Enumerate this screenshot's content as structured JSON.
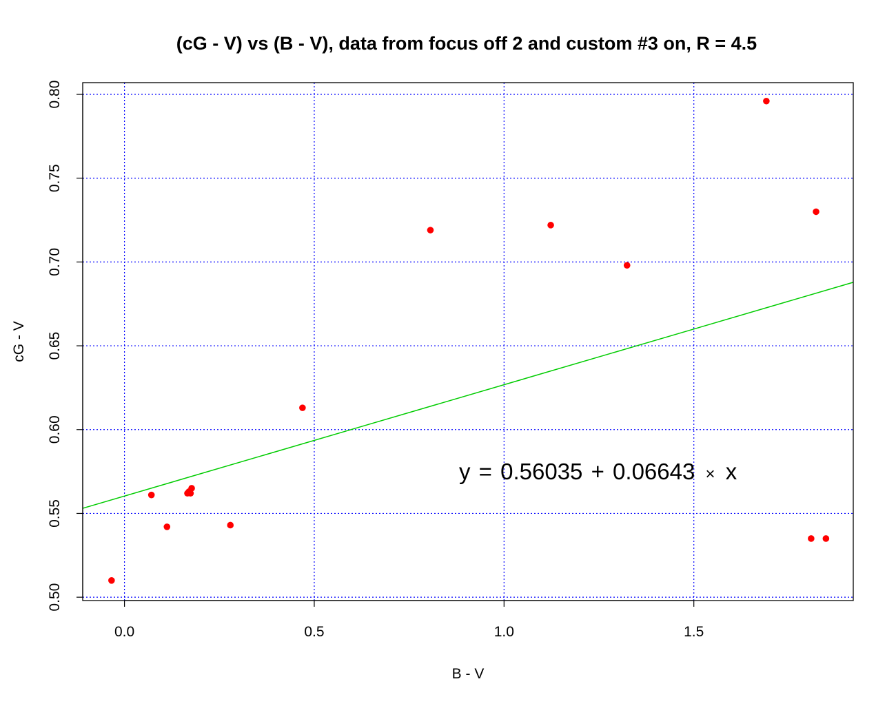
{
  "chart_data": {
    "type": "scatter",
    "title": "(cG - V) vs (B - V), data from focus off 2 and custom #3 on, R = 4.5",
    "xlabel": "B - V",
    "ylabel": "cG - V",
    "xlim": [
      -0.11,
      1.92
    ],
    "ylim": [
      0.498,
      0.807
    ],
    "x_ticks": [
      0.0,
      0.5,
      1.0,
      1.5
    ],
    "x_tick_labels": [
      "0.0",
      "0.5",
      "1.0",
      "1.5"
    ],
    "y_ticks": [
      0.5,
      0.55,
      0.6,
      0.65,
      0.7,
      0.75,
      0.8
    ],
    "y_tick_labels": [
      "0.50",
      "0.55",
      "0.60",
      "0.65",
      "0.70",
      "0.75",
      "0.80"
    ],
    "grid": true,
    "grid_color": "#0000ff",
    "point_color": "#ff0000",
    "line_color": "#00cc00",
    "points": [
      {
        "x": -0.034,
        "y": 0.51
      },
      {
        "x": 0.071,
        "y": 0.561
      },
      {
        "x": 0.112,
        "y": 0.542
      },
      {
        "x": 0.166,
        "y": 0.562
      },
      {
        "x": 0.17,
        "y": 0.563
      },
      {
        "x": 0.174,
        "y": 0.562
      },
      {
        "x": 0.177,
        "y": 0.565
      },
      {
        "x": 0.279,
        "y": 0.543
      },
      {
        "x": 0.469,
        "y": 0.613
      },
      {
        "x": 0.806,
        "y": 0.719
      },
      {
        "x": 1.123,
        "y": 0.722
      },
      {
        "x": 1.324,
        "y": 0.698
      },
      {
        "x": 1.691,
        "y": 0.796
      },
      {
        "x": 1.809,
        "y": 0.535
      },
      {
        "x": 1.822,
        "y": 0.73
      },
      {
        "x": 1.848,
        "y": 0.535
      }
    ],
    "fit": {
      "intercept": 0.56035,
      "slope": 0.06643
    },
    "annotation": {
      "y_sym": "y",
      "eq_sym": "=",
      "intercept_text": "0.56035",
      "plus_sym": "+",
      "slope_text": "0.06643",
      "times_sym": "×",
      "x_sym": "x"
    }
  }
}
